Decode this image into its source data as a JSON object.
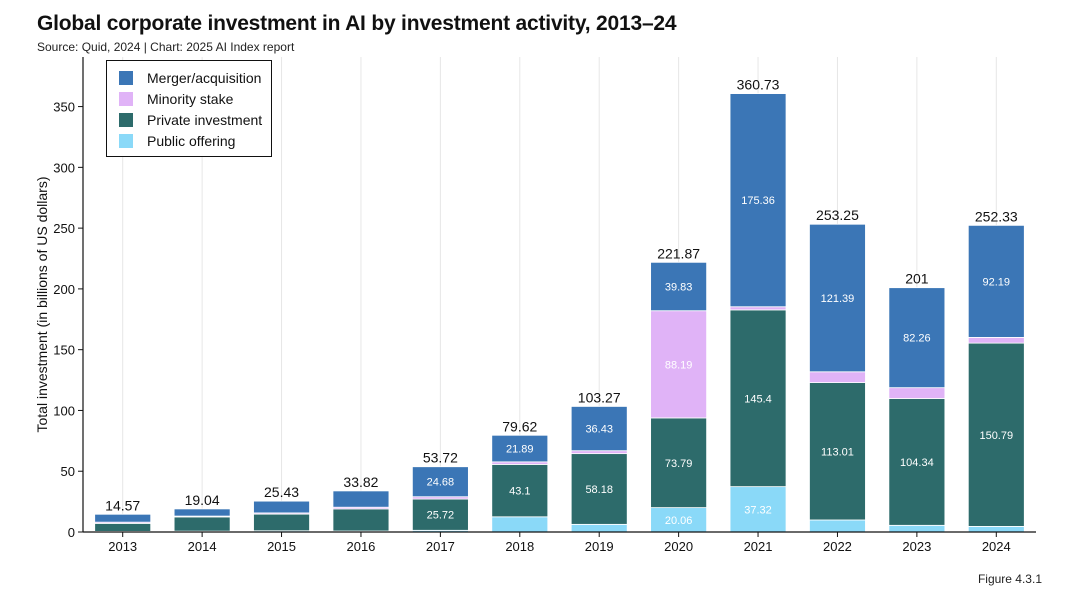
{
  "header": {
    "title": "Global corporate investment in AI by investment activity, 2013–24",
    "subtitle": "Source: Quid, 2024 | Chart: 2025 AI Index report",
    "figure": "Figure 4.3.1"
  },
  "chart_data": {
    "type": "bar",
    "stacked": true,
    "title": "Global corporate investment in AI by investment activity, 2013–24",
    "xlabel": "",
    "ylabel": "Total investment (in billions of US dollars)",
    "ylim": [
      0,
      370
    ],
    "yticks": [
      0,
      50,
      100,
      150,
      200,
      250,
      300,
      350
    ],
    "grid": "vertical",
    "legend_position": "top-left",
    "categories": [
      "2013",
      "2014",
      "2015",
      "2016",
      "2017",
      "2018",
      "2019",
      "2020",
      "2021",
      "2022",
      "2023",
      "2024"
    ],
    "series": [
      {
        "name": "Public offering",
        "color": "#8ad9f8",
        "values": [
          0.5,
          0.7,
          1.0,
          0.8,
          1.4,
          12.5,
          6.3,
          20.06,
          37.32,
          9.9,
          5.5,
          4.6
        ]
      },
      {
        "name": "Private investment",
        "color": "#2d6b6b",
        "values": [
          6.6,
          11.7,
          13.7,
          18.2,
          25.72,
          43.1,
          58.18,
          73.79,
          145.4,
          113.01,
          104.34,
          150.79
        ]
      },
      {
        "name": "Minority stake",
        "color": "#e0b3f7",
        "values": [
          1.0,
          0.7,
          1.0,
          1.4,
          1.9,
          2.1,
          2.4,
          88.19,
          2.6,
          8.9,
          8.9,
          4.7
        ]
      },
      {
        "name": "Merger/acquisition",
        "color": "#3b76b6",
        "values": [
          6.5,
          5.9,
          9.7,
          13.4,
          24.68,
          21.89,
          36.43,
          39.83,
          175.36,
          121.39,
          82.26,
          92.19
        ]
      }
    ],
    "totals": [
      "14.57",
      "19.04",
      "25.43",
      "33.82",
      "53.72",
      "79.62",
      "103.27",
      "221.87",
      "360.73",
      "253.25",
      "201",
      "252.33"
    ],
    "segment_labels": {
      "Public offering": [
        "",
        "",
        "",
        "",
        "",
        "",
        "",
        "20.06",
        "37.32",
        "",
        "",
        ""
      ],
      "Private investment": [
        "",
        "",
        "",
        "",
        "25.72",
        "43.1",
        "58.18",
        "73.79",
        "145.4",
        "113.01",
        "104.34",
        "150.79"
      ],
      "Minority stake": [
        "",
        "",
        "",
        "",
        "",
        "",
        "",
        "88.19",
        "",
        "",
        "",
        ""
      ],
      "Merger/acquisition": [
        "",
        "",
        "",
        "",
        "24.68",
        "21.89",
        "36.43",
        "39.83",
        "175.36",
        "121.39",
        "82.26",
        "92.19"
      ]
    },
    "legend_order": [
      "Merger/acquisition",
      "Minority stake",
      "Private investment",
      "Public offering"
    ]
  }
}
